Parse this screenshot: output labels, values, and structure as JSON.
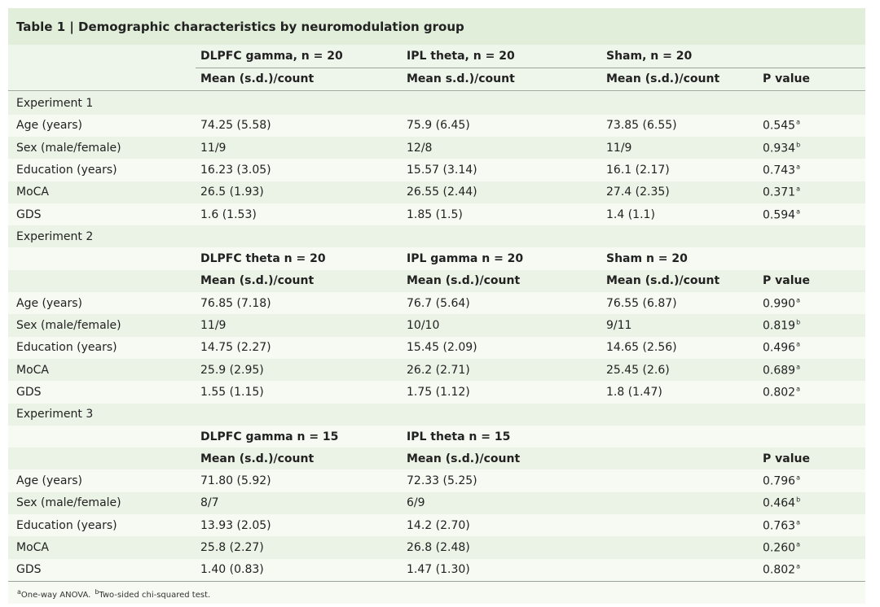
{
  "table": {
    "title": "Table 1 | Demographic characteristics by neuromodulation group",
    "rows": [
      [
        null,
        "DLPFC gamma, n = 20",
        "IPL theta, n = 20",
        "Sham, n = 20",
        null
      ],
      [
        null,
        "Mean (s.d.)/count",
        "Mean s.d.)/count",
        "Mean (s.d.)/count",
        "P value"
      ],
      [
        "Experiment 1"
      ],
      [
        "Age (years)",
        "74.25 (5.58)",
        "75.9 (6.45)",
        "73.85 (6.55)",
        {
          "text": "0.545",
          "sup": "a"
        }
      ],
      [
        "Sex (male/female)",
        "11/9",
        "12/8",
        "11/9",
        {
          "text": "0.934",
          "sup": "b"
        }
      ],
      [
        "Education (years)",
        "16.23 (3.05)",
        "15.57 (3.14)",
        "16.1 (2.17)",
        {
          "text": "0.743",
          "sup": "a"
        }
      ],
      [
        "MoCA",
        "26.5 (1.93)",
        "26.55 (2.44)",
        "27.4 (2.35)",
        {
          "text": "0.371",
          "sup": "a"
        }
      ],
      [
        "GDS",
        "1.6 (1.53)",
        "1.85 (1.5)",
        "1.4 (1.1)",
        {
          "text": "0.594",
          "sup": "a"
        }
      ],
      [
        "Experiment 2"
      ],
      [
        null,
        "DLPFC theta n = 20",
        "IPL gamma n = 20",
        "Sham n = 20",
        null
      ],
      [
        null,
        "Mean (s.d.)/count",
        "Mean (s.d.)/count",
        "Mean (s.d.)/count",
        "P value"
      ],
      [
        "Age (years)",
        "76.85 (7.18)",
        "76.7 (5.64)",
        "76.55 (6.87)",
        {
          "text": "0.990",
          "sup": "a"
        }
      ],
      [
        "Sex (male/female)",
        "11/9",
        "10/10",
        "9/11",
        {
          "text": "0.819",
          "sup": "b"
        }
      ],
      [
        "Education (years)",
        "14.75 (2.27)",
        "15.45 (2.09)",
        "14.65 (2.56)",
        {
          "text": "0.496",
          "sup": "a"
        }
      ],
      [
        "MoCA",
        "25.9 (2.95)",
        "26.2 (2.71)",
        "25.45 (2.6)",
        {
          "text": "0.689",
          "sup": "a"
        }
      ],
      [
        "GDS",
        "1.55 (1.15)",
        "1.75 (1.12)",
        "1.8 (1.47)",
        {
          "text": "0.802",
          "sup": "a"
        }
      ],
      [
        "Experiment 3"
      ],
      [
        null,
        "DLPFC gamma n = 15",
        "IPL theta n = 15",
        null,
        null
      ],
      [
        null,
        "Mean (s.d.)/count",
        "Mean (s.d.)/count",
        null,
        "P value"
      ],
      [
        "Age (years)",
        "71.80 (5.92)",
        "72.33 (5.25)",
        null,
        {
          "text": "0.796",
          "sup": "a"
        }
      ],
      [
        "Sex (male/female)",
        "8/7",
        "6/9",
        null,
        {
          "text": "0.464",
          "sup": "b"
        }
      ],
      [
        "Education (years)",
        "13.93 (2.05)",
        "14.2 (2.70)",
        null,
        {
          "text": "0.763",
          "sup": "a"
        }
      ],
      [
        "MoCA",
        "25.8 (2.27)",
        "26.8 (2.48)",
        null,
        {
          "text": "0.260",
          "sup": "a"
        }
      ],
      [
        "GDS",
        "1.40 (0.83)",
        "1.47 (1.30)",
        null,
        {
          "text": "0.802",
          "sup": "a"
        }
      ]
    ],
    "footnotes": [
      {
        "mark": "a",
        "text": "One-way ANOVA."
      },
      {
        "mark": "b",
        "text": "Two-sided chi-squared test."
      }
    ]
  }
}
